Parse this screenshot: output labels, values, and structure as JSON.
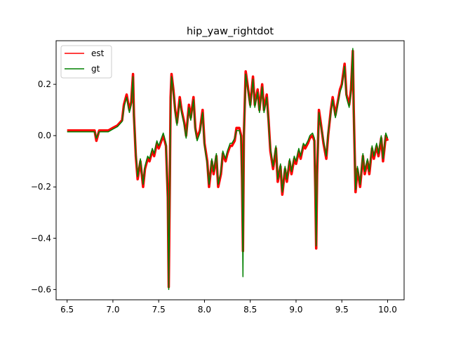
{
  "chart_data": {
    "type": "line",
    "title": "hip_yaw_rightdot",
    "xlabel": "",
    "ylabel": "",
    "xlim": [
      6.38,
      10.18
    ],
    "ylim": [
      -0.64,
      0.37
    ],
    "xticks": [
      6.5,
      7.0,
      7.5,
      8.0,
      8.5,
      9.0,
      9.5,
      10.0
    ],
    "xtick_labels": [
      "6.5",
      "7.0",
      "7.5",
      "8.0",
      "8.5",
      "9.0",
      "9.5",
      "10.0"
    ],
    "yticks": [
      0.2,
      0.0,
      -0.2,
      -0.4,
      -0.6
    ],
    "ytick_labels": [
      "0.2",
      "0.0",
      "−0.2",
      "−0.4",
      "−0.6"
    ],
    "grid": false,
    "legend_position": "top-left",
    "series": [
      {
        "name": "est",
        "color": "#ff0000",
        "x": [
          6.5,
          6.55,
          6.6,
          6.65,
          6.7,
          6.75,
          6.8,
          6.82,
          6.85,
          6.9,
          6.95,
          7.0,
          7.05,
          7.1,
          7.12,
          7.15,
          7.18,
          7.2,
          7.22,
          7.23,
          7.25,
          7.27,
          7.3,
          7.33,
          7.35,
          7.38,
          7.4,
          7.43,
          7.45,
          7.48,
          7.5,
          7.53,
          7.55,
          7.58,
          7.6,
          7.61,
          7.62,
          7.63,
          7.64,
          7.66,
          7.68,
          7.7,
          7.73,
          7.75,
          7.78,
          7.8,
          7.83,
          7.85,
          7.88,
          7.9,
          7.92,
          7.95,
          7.98,
          8.0,
          8.03,
          8.05,
          8.08,
          8.1,
          8.13,
          8.15,
          8.18,
          8.2,
          8.23,
          8.25,
          8.28,
          8.3,
          8.33,
          8.35,
          8.38,
          8.4,
          8.41,
          8.42,
          8.43,
          8.45,
          8.47,
          8.5,
          8.53,
          8.55,
          8.58,
          8.6,
          8.63,
          8.65,
          8.68,
          8.7,
          8.72,
          8.75,
          8.78,
          8.8,
          8.83,
          8.85,
          8.88,
          8.9,
          8.93,
          8.95,
          8.98,
          9.0,
          9.03,
          9.05,
          9.08,
          9.1,
          9.13,
          9.15,
          9.18,
          9.2,
          9.21,
          9.22,
          9.23,
          9.25,
          9.27,
          9.3,
          9.33,
          9.35,
          9.38,
          9.4,
          9.43,
          9.45,
          9.48,
          9.5,
          9.53,
          9.55,
          9.58,
          9.6,
          9.62,
          9.63,
          9.65,
          9.67,
          9.7,
          9.73,
          9.75,
          9.78,
          9.8,
          9.83,
          9.85,
          9.88,
          9.9,
          9.93,
          9.95,
          9.98,
          10.0
        ],
        "values": [
          0.02,
          0.02,
          0.02,
          0.02,
          0.02,
          0.02,
          0.02,
          -0.02,
          0.02,
          0.02,
          0.02,
          0.03,
          0.04,
          0.06,
          0.12,
          0.16,
          0.1,
          0.13,
          0.24,
          0.08,
          -0.08,
          -0.17,
          -0.1,
          -0.2,
          -0.13,
          -0.09,
          -0.1,
          -0.06,
          -0.08,
          -0.03,
          -0.05,
          -0.02,
          0.0,
          -0.04,
          -0.24,
          -0.59,
          -0.22,
          0.15,
          0.24,
          0.18,
          0.1,
          0.05,
          0.15,
          0.1,
          0.05,
          0.0,
          0.12,
          0.07,
          0.15,
          0.03,
          -0.01,
          0.02,
          0.1,
          -0.03,
          -0.1,
          -0.2,
          -0.1,
          -0.15,
          -0.08,
          -0.2,
          -0.15,
          -0.07,
          -0.1,
          -0.07,
          -0.04,
          -0.04,
          -0.02,
          0.03,
          0.03,
          0.0,
          -0.16,
          -0.45,
          0.0,
          0.25,
          0.2,
          0.12,
          0.23,
          0.12,
          0.18,
          0.1,
          0.2,
          0.1,
          0.16,
          0.06,
          -0.06,
          -0.13,
          -0.05,
          -0.18,
          -0.12,
          -0.23,
          -0.13,
          -0.18,
          -0.1,
          -0.15,
          -0.09,
          -0.11,
          -0.06,
          -0.09,
          -0.04,
          -0.05,
          -0.03,
          -0.01,
          0.0,
          -0.02,
          -0.2,
          -0.44,
          -0.15,
          0.1,
          0.05,
          -0.03,
          -0.09,
          0.0,
          0.1,
          0.15,
          0.08,
          0.12,
          0.18,
          0.2,
          0.28,
          0.16,
          0.12,
          0.18,
          0.33,
          0.1,
          -0.22,
          -0.13,
          -0.2,
          -0.08,
          -0.15,
          -0.1,
          -0.15,
          -0.05,
          -0.09,
          -0.04,
          -0.08,
          -0.01,
          -0.1,
          0.0,
          -0.02
        ]
      },
      {
        "name": "gt",
        "color": "#008000",
        "x": [
          6.5,
          6.55,
          6.6,
          6.65,
          6.7,
          6.75,
          6.8,
          6.82,
          6.85,
          6.9,
          6.95,
          7.0,
          7.05,
          7.1,
          7.12,
          7.15,
          7.18,
          7.2,
          7.22,
          7.23,
          7.25,
          7.27,
          7.3,
          7.33,
          7.35,
          7.38,
          7.4,
          7.43,
          7.45,
          7.48,
          7.5,
          7.53,
          7.55,
          7.58,
          7.6,
          7.61,
          7.62,
          7.63,
          7.64,
          7.66,
          7.68,
          7.7,
          7.73,
          7.75,
          7.78,
          7.8,
          7.83,
          7.85,
          7.88,
          7.9,
          7.92,
          7.95,
          7.98,
          8.0,
          8.03,
          8.05,
          8.08,
          8.1,
          8.13,
          8.15,
          8.18,
          8.2,
          8.23,
          8.25,
          8.28,
          8.3,
          8.33,
          8.35,
          8.38,
          8.4,
          8.41,
          8.42,
          8.43,
          8.45,
          8.47,
          8.5,
          8.53,
          8.55,
          8.58,
          8.6,
          8.63,
          8.65,
          8.68,
          8.7,
          8.72,
          8.75,
          8.78,
          8.8,
          8.83,
          8.85,
          8.88,
          8.9,
          8.93,
          8.95,
          8.98,
          9.0,
          9.03,
          9.05,
          9.08,
          9.1,
          9.13,
          9.15,
          9.18,
          9.2,
          9.21,
          9.22,
          9.23,
          9.25,
          9.27,
          9.3,
          9.33,
          9.35,
          9.38,
          9.4,
          9.43,
          9.45,
          9.48,
          9.5,
          9.53,
          9.55,
          9.58,
          9.6,
          9.62,
          9.63,
          9.65,
          9.67,
          9.7,
          9.73,
          9.75,
          9.78,
          9.8,
          9.83,
          9.85,
          9.88,
          9.9,
          9.93,
          9.95,
          9.98,
          10.0
        ],
        "values": [
          0.015,
          0.015,
          0.015,
          0.015,
          0.015,
          0.015,
          0.015,
          -0.01,
          0.015,
          0.015,
          0.015,
          0.025,
          0.035,
          0.055,
          0.11,
          0.15,
          0.09,
          0.12,
          0.23,
          0.07,
          -0.07,
          -0.16,
          -0.09,
          -0.19,
          -0.12,
          -0.08,
          -0.09,
          -0.05,
          -0.07,
          -0.02,
          -0.04,
          -0.01,
          0.01,
          -0.03,
          -0.25,
          -0.6,
          -0.23,
          0.14,
          0.23,
          0.17,
          0.09,
          0.04,
          0.14,
          0.09,
          0.04,
          -0.01,
          0.11,
          0.06,
          0.14,
          0.02,
          -0.02,
          0.01,
          0.09,
          -0.04,
          -0.11,
          -0.19,
          -0.09,
          -0.14,
          -0.07,
          -0.19,
          -0.14,
          -0.06,
          -0.09,
          -0.06,
          -0.03,
          -0.03,
          -0.01,
          0.02,
          0.02,
          -0.01,
          -0.17,
          -0.55,
          -0.01,
          0.24,
          0.19,
          0.11,
          0.22,
          0.11,
          0.17,
          0.09,
          0.19,
          0.09,
          0.15,
          0.05,
          -0.05,
          -0.12,
          -0.04,
          -0.17,
          -0.11,
          -0.22,
          -0.12,
          -0.17,
          -0.09,
          -0.14,
          -0.08,
          -0.1,
          -0.05,
          -0.08,
          -0.03,
          -0.04,
          -0.02,
          0.0,
          0.01,
          -0.01,
          -0.21,
          -0.43,
          -0.14,
          0.09,
          0.04,
          -0.02,
          -0.08,
          0.01,
          0.09,
          0.14,
          0.07,
          0.11,
          0.17,
          0.19,
          0.27,
          0.15,
          0.11,
          0.17,
          0.34,
          0.09,
          -0.21,
          -0.12,
          -0.19,
          -0.07,
          -0.14,
          -0.09,
          -0.14,
          -0.04,
          -0.08,
          -0.03,
          -0.07,
          0.0,
          -0.09,
          0.01,
          -0.01
        ]
      }
    ]
  }
}
